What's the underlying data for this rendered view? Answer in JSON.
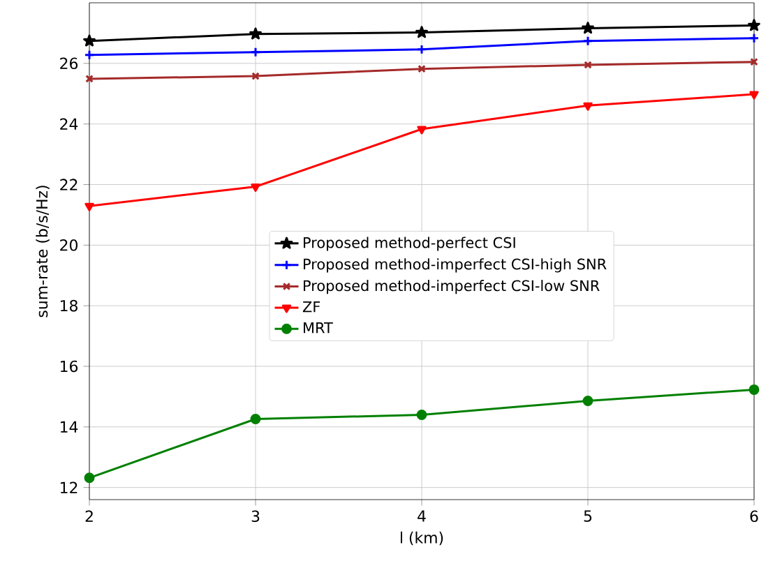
{
  "chart_data": {
    "type": "line",
    "xlabel": "l (km)",
    "ylabel": "sum-rate (b/s/Hz)",
    "x": [
      2,
      3,
      4,
      5,
      6
    ],
    "series": [
      {
        "name": "Proposed method-perfect CSI",
        "color": "#000000",
        "marker": "star",
        "values": [
          26.74,
          26.97,
          27.02,
          27.16,
          27.25
        ]
      },
      {
        "name": "Proposed method-imperfect CSI-high SNR",
        "color": "#0000ff",
        "marker": "plus",
        "values": [
          26.28,
          26.37,
          26.46,
          26.74,
          26.83
        ]
      },
      {
        "name": "Proposed method-imperfect CSI-low SNR",
        "color": "#a52a2a",
        "marker": "cross",
        "values": [
          25.49,
          25.58,
          25.82,
          25.95,
          26.05
        ]
      },
      {
        "name": "ZF",
        "color": "#ff0000",
        "marker": "triangle",
        "values": [
          21.29,
          21.93,
          23.83,
          24.61,
          24.98
        ]
      },
      {
        "name": "MRT",
        "color": "#008000",
        "marker": "circle",
        "values": [
          12.32,
          14.26,
          14.4,
          14.86,
          15.23
        ]
      }
    ],
    "xlim": [
      2,
      6
    ],
    "ylim": [
      11.6,
      28
    ],
    "xticks": [
      2,
      3,
      4,
      5,
      6
    ],
    "yticks": [
      12,
      14,
      16,
      18,
      20,
      22,
      24,
      26
    ],
    "grid": true,
    "legend": "center",
    "line_style": "solid"
  }
}
